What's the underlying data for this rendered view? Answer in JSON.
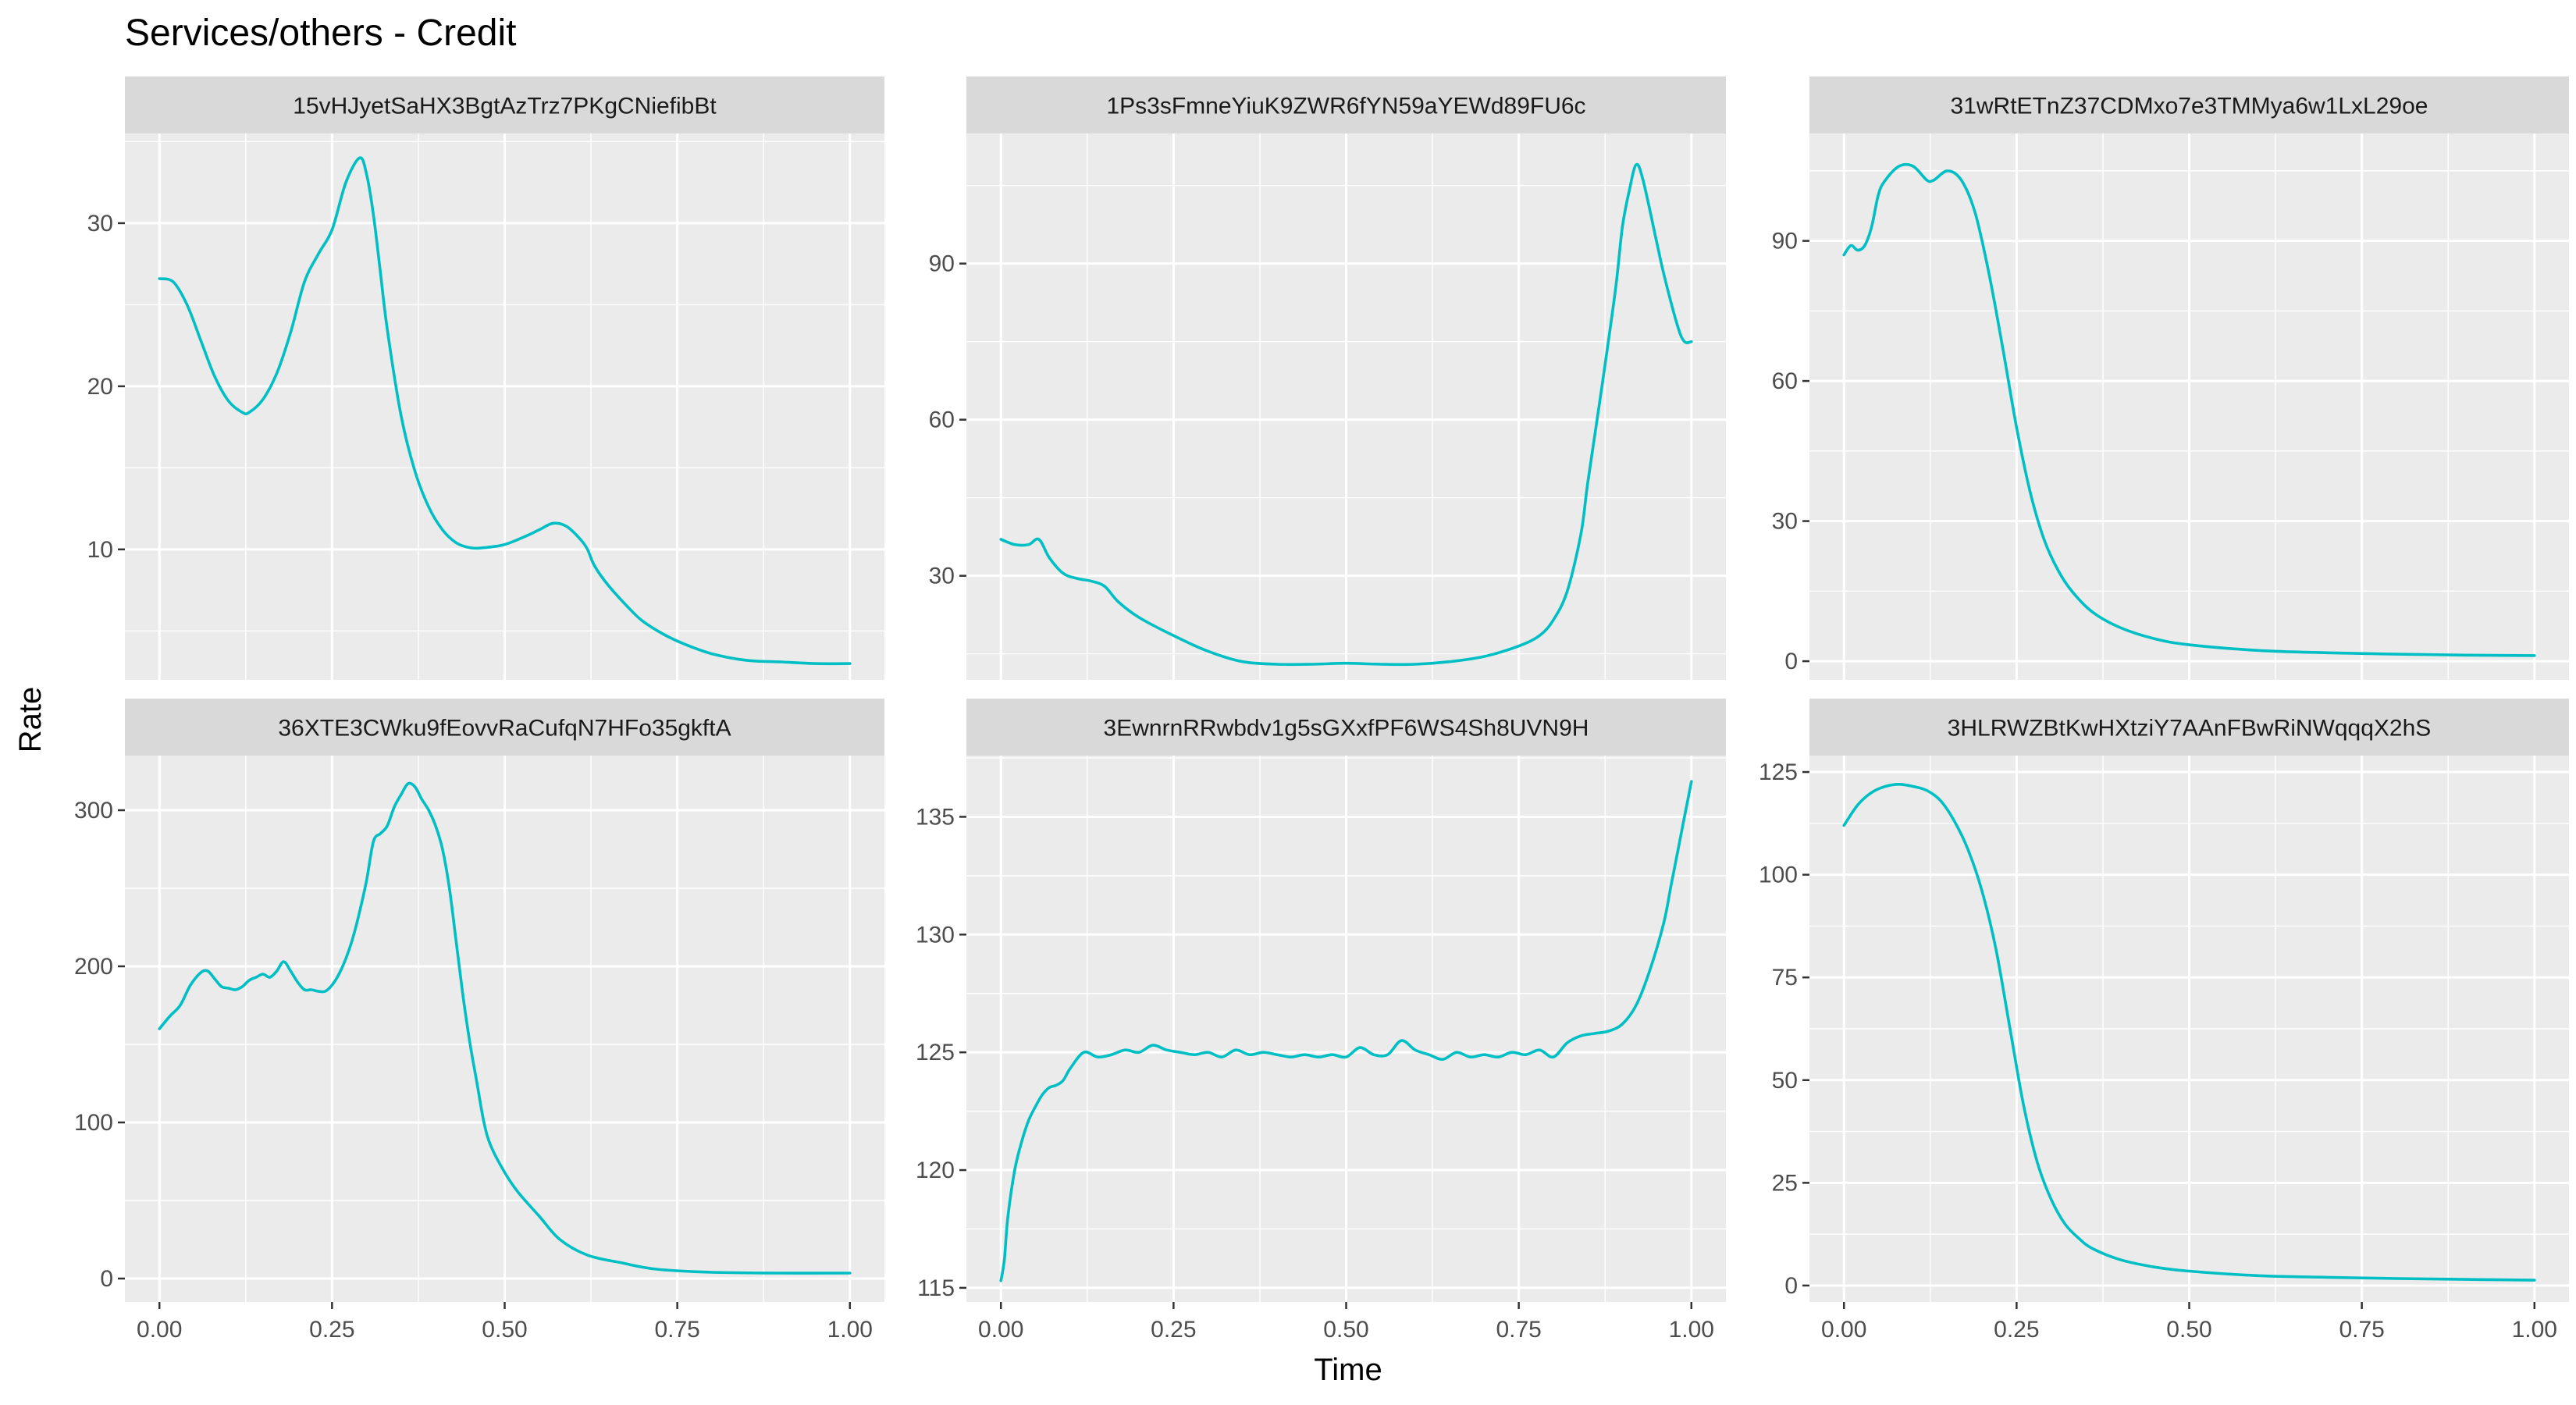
{
  "chart_data": {
    "type": "line",
    "title": "Services/others - Credit",
    "xlabel": "Time",
    "ylabel": "Rate",
    "series_color": "#00BFC4",
    "panel_background": "#EBEBEB",
    "strip_background": "#D9D9D9",
    "grid": true,
    "facet_layout": {
      "rows": 2,
      "cols": 3
    },
    "x_ticks": [
      0.0,
      0.25,
      0.5,
      0.75,
      1.0
    ],
    "x_tick_labels": [
      "0.00",
      "0.25",
      "0.50",
      "0.75",
      "1.00"
    ],
    "xlim": [
      -0.05,
      1.05
    ],
    "panels": [
      {
        "name": "15vHJyetSaHX3BgtAzTrz7PKgCNiefibBt",
        "ylim": [
          2.0,
          35.5
        ],
        "y_ticks": [
          10,
          20,
          30
        ],
        "y_tick_labels": [
          "10",
          "20",
          "30"
        ],
        "x": [
          0.0,
          0.02,
          0.04,
          0.06,
          0.08,
          0.1,
          0.12,
          0.13,
          0.15,
          0.17,
          0.19,
          0.21,
          0.23,
          0.25,
          0.27,
          0.29,
          0.3,
          0.31,
          0.32,
          0.33,
          0.35,
          0.37,
          0.39,
          0.41,
          0.43,
          0.45,
          0.47,
          0.5,
          0.53,
          0.55,
          0.57,
          0.59,
          0.61,
          0.62,
          0.63,
          0.65,
          0.68,
          0.7,
          0.73,
          0.76,
          0.8,
          0.85,
          0.9,
          0.95,
          1.0
        ],
        "y": [
          26.6,
          26.4,
          25.0,
          22.8,
          20.6,
          19.1,
          18.4,
          18.4,
          19.2,
          20.8,
          23.3,
          26.4,
          28.1,
          29.6,
          32.5,
          34.0,
          33.0,
          30.5,
          27.0,
          23.5,
          18.2,
          14.8,
          12.6,
          11.2,
          10.4,
          10.1,
          10.1,
          10.3,
          10.8,
          11.2,
          11.6,
          11.4,
          10.6,
          10.0,
          9.0,
          7.8,
          6.4,
          5.6,
          4.8,
          4.2,
          3.6,
          3.2,
          3.1,
          3.0,
          3.0
        ]
      },
      {
        "name": "1Ps3sFmneYiuK9ZWR6fYN59aYEWd89FU6c",
        "ylim": [
          10.0,
          115.0
        ],
        "y_ticks": [
          30,
          60,
          90
        ],
        "y_tick_labels": [
          "30",
          "60",
          "90"
        ],
        "x": [
          0.0,
          0.02,
          0.04,
          0.055,
          0.07,
          0.09,
          0.11,
          0.13,
          0.15,
          0.17,
          0.2,
          0.25,
          0.3,
          0.35,
          0.4,
          0.45,
          0.5,
          0.55,
          0.6,
          0.65,
          0.7,
          0.75,
          0.78,
          0.8,
          0.82,
          0.84,
          0.85,
          0.87,
          0.89,
          0.9,
          0.91,
          0.92,
          0.93,
          0.95,
          0.96,
          0.98,
          0.99,
          1.0
        ],
        "y": [
          37.0,
          36.0,
          36.0,
          37.0,
          33.5,
          30.5,
          29.5,
          29.0,
          28.0,
          25.0,
          22.0,
          18.5,
          15.5,
          13.5,
          13.0,
          13.0,
          13.2,
          13.0,
          13.0,
          13.5,
          14.5,
          16.5,
          18.5,
          21.5,
          27.0,
          38.0,
          48.0,
          66.0,
          85.0,
          97.0,
          104.0,
          109.0,
          106.0,
          94.0,
          88.0,
          78.0,
          75.0,
          75.0
        ]
      },
      {
        "name": "31wRtETnZ37CDMxo7e3TMMya6w1LxL29oe",
        "ylim": [
          -4.0,
          113.0
        ],
        "y_ticks": [
          0,
          30,
          60,
          90
        ],
        "y_tick_labels": [
          "0",
          "30",
          "60",
          "90"
        ],
        "x": [
          0.0,
          0.01,
          0.02,
          0.03,
          0.04,
          0.05,
          0.06,
          0.08,
          0.1,
          0.12,
          0.13,
          0.15,
          0.17,
          0.19,
          0.21,
          0.23,
          0.25,
          0.27,
          0.29,
          0.31,
          0.33,
          0.36,
          0.4,
          0.45,
          0.5,
          0.6,
          0.7,
          0.8,
          0.9,
          1.0
        ],
        "y": [
          87.0,
          89.0,
          88.0,
          89.0,
          93.0,
          100.0,
          103.0,
          106.0,
          106.0,
          103.0,
          103.0,
          105.0,
          103.0,
          96.0,
          83.0,
          67.0,
          50.0,
          36.0,
          26.0,
          19.5,
          15.0,
          10.5,
          7.2,
          4.8,
          3.5,
          2.3,
          1.8,
          1.5,
          1.3,
          1.2
        ]
      },
      {
        "name": "36XTE3CWku9fEovvRaCufqN7HFo35gkftA",
        "ylim": [
          -15.0,
          335.0
        ],
        "y_ticks": [
          0,
          100,
          200,
          300
        ],
        "y_tick_labels": [
          "0",
          "100",
          "200",
          "300"
        ],
        "x": [
          0.0,
          0.015,
          0.03,
          0.045,
          0.06,
          0.07,
          0.08,
          0.09,
          0.1,
          0.11,
          0.12,
          0.13,
          0.14,
          0.15,
          0.16,
          0.17,
          0.18,
          0.19,
          0.2,
          0.21,
          0.22,
          0.23,
          0.24,
          0.25,
          0.26,
          0.27,
          0.28,
          0.29,
          0.3,
          0.31,
          0.32,
          0.33,
          0.34,
          0.35,
          0.36,
          0.37,
          0.38,
          0.39,
          0.4,
          0.41,
          0.42,
          0.43,
          0.44,
          0.45,
          0.46,
          0.47,
          0.48,
          0.5,
          0.52,
          0.55,
          0.58,
          0.62,
          0.67,
          0.72,
          0.8,
          0.9,
          1.0
        ],
        "y": [
          160,
          168,
          175,
          188,
          196,
          197,
          192,
          187,
          186,
          185,
          187,
          191,
          193,
          195,
          193,
          197,
          203,
          197,
          190,
          185,
          185,
          184,
          184,
          188,
          195,
          205,
          218,
          235,
          255,
          280,
          285,
          290,
          302,
          310,
          317,
          315,
          307,
          300,
          290,
          275,
          250,
          215,
          180,
          150,
          125,
          100,
          85,
          68,
          55,
          40,
          25,
          15,
          10,
          6,
          4,
          3.5,
          3.5
        ]
      },
      {
        "name": "3EwnrnRRwbdv1g5sGXxfPF6WS4Sh8UVN9H",
        "ylim": [
          114.4,
          137.6
        ],
        "y_ticks": [
          115,
          120,
          125,
          130,
          135
        ],
        "y_tick_labels": [
          "115",
          "120",
          "125",
          "130",
          "135"
        ],
        "x": [
          0.0,
          0.005,
          0.01,
          0.02,
          0.03,
          0.04,
          0.05,
          0.06,
          0.07,
          0.08,
          0.09,
          0.1,
          0.12,
          0.14,
          0.16,
          0.18,
          0.2,
          0.22,
          0.24,
          0.26,
          0.28,
          0.3,
          0.32,
          0.34,
          0.36,
          0.38,
          0.4,
          0.42,
          0.44,
          0.46,
          0.48,
          0.5,
          0.52,
          0.54,
          0.56,
          0.58,
          0.6,
          0.62,
          0.64,
          0.66,
          0.68,
          0.7,
          0.72,
          0.74,
          0.76,
          0.78,
          0.8,
          0.82,
          0.84,
          0.86,
          0.88,
          0.9,
          0.92,
          0.94,
          0.96,
          0.97,
          0.98,
          0.99,
          1.0
        ],
        "y": [
          115.3,
          116.2,
          118.0,
          120.0,
          121.2,
          122.1,
          122.7,
          123.2,
          123.5,
          123.6,
          123.8,
          124.3,
          125.0,
          124.8,
          124.9,
          125.1,
          125.0,
          125.3,
          125.1,
          125.0,
          124.9,
          125.0,
          124.8,
          125.1,
          124.9,
          125.0,
          124.9,
          124.8,
          124.9,
          124.8,
          124.9,
          124.8,
          125.2,
          124.9,
          124.9,
          125.5,
          125.1,
          124.9,
          124.7,
          125.0,
          124.8,
          124.9,
          124.8,
          125.0,
          124.9,
          125.1,
          124.8,
          125.4,
          125.7,
          125.8,
          125.9,
          126.2,
          127.0,
          128.5,
          130.5,
          132.0,
          133.5,
          135.0,
          136.5
        ]
      },
      {
        "name": "3HLRWZBtKwHXtziY7AAnFBwRiNWqqqX2hS",
        "ylim": [
          -4.0,
          129.0
        ],
        "y_ticks": [
          0,
          25,
          50,
          75,
          100,
          125
        ],
        "y_tick_labels": [
          "0",
          "25",
          "50",
          "75",
          "100",
          "125"
        ],
        "x": [
          0.0,
          0.02,
          0.04,
          0.06,
          0.08,
          0.1,
          0.12,
          0.14,
          0.16,
          0.18,
          0.2,
          0.22,
          0.24,
          0.26,
          0.28,
          0.3,
          0.32,
          0.34,
          0.36,
          0.4,
          0.45,
          0.5,
          0.6,
          0.7,
          0.8,
          0.9,
          1.0
        ],
        "y": [
          112.0,
          117.0,
          120.0,
          121.5,
          122.0,
          121.5,
          120.5,
          118.0,
          113.0,
          106.0,
          96.0,
          82.0,
          63.0,
          44.0,
          30.0,
          21.0,
          15.0,
          11.5,
          9.0,
          6.3,
          4.5,
          3.5,
          2.4,
          2.0,
          1.7,
          1.5,
          1.3
        ]
      }
    ]
  }
}
